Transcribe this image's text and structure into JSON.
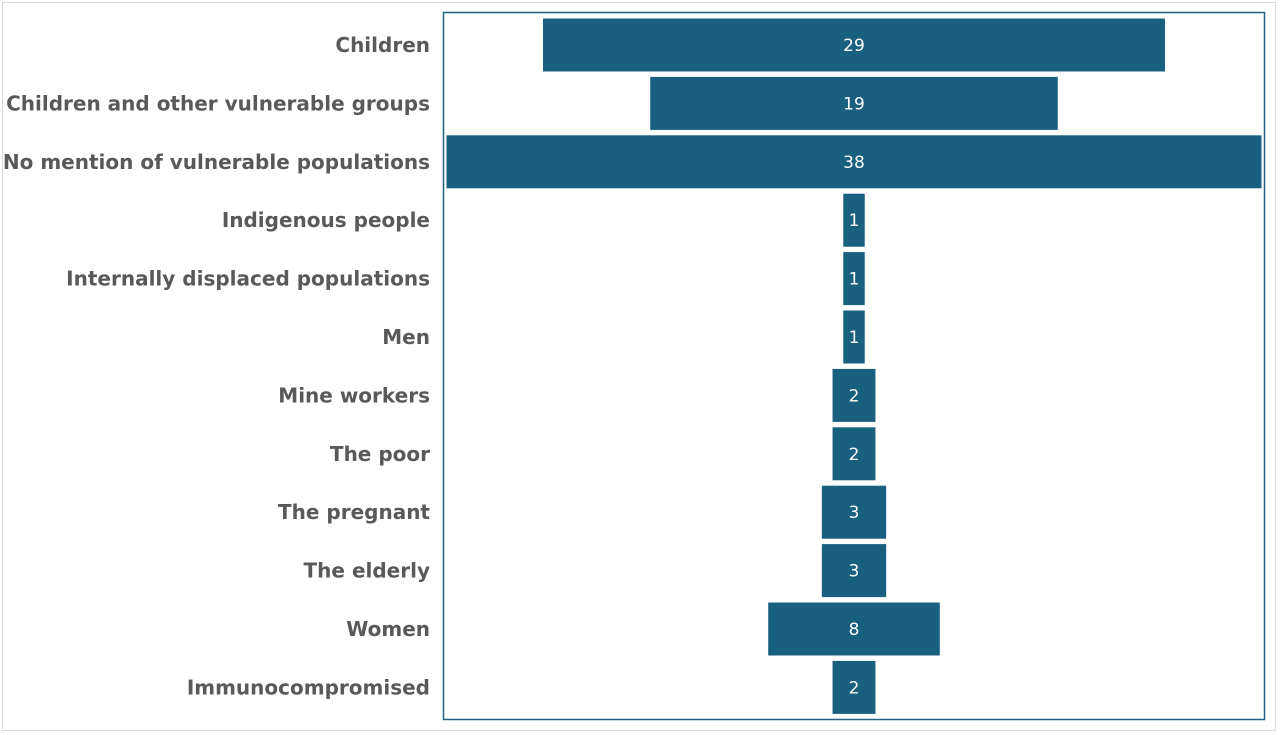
{
  "chart_data": {
    "type": "bar",
    "orientation": "horizontal-centered",
    "title": "",
    "xlabel": "",
    "ylabel": "",
    "categories": [
      "Children",
      "Children and other vulnerable groups",
      "No mention of vulnerable populations",
      "Indigenous people",
      "Internally displaced populations",
      "Men",
      "Mine workers",
      "The poor",
      "The pregnant",
      "The elderly",
      "Women",
      "Immunocompromised"
    ],
    "values": [
      29,
      19,
      38,
      1,
      1,
      1,
      2,
      2,
      3,
      3,
      8,
      2
    ],
    "xlim": [
      0,
      38
    ],
    "grid": false,
    "legend": "none",
    "bar_color": "#185f80",
    "plot_border_color": "#1f6183",
    "label_color": "#595959",
    "value_label_color": "#ffffff"
  }
}
